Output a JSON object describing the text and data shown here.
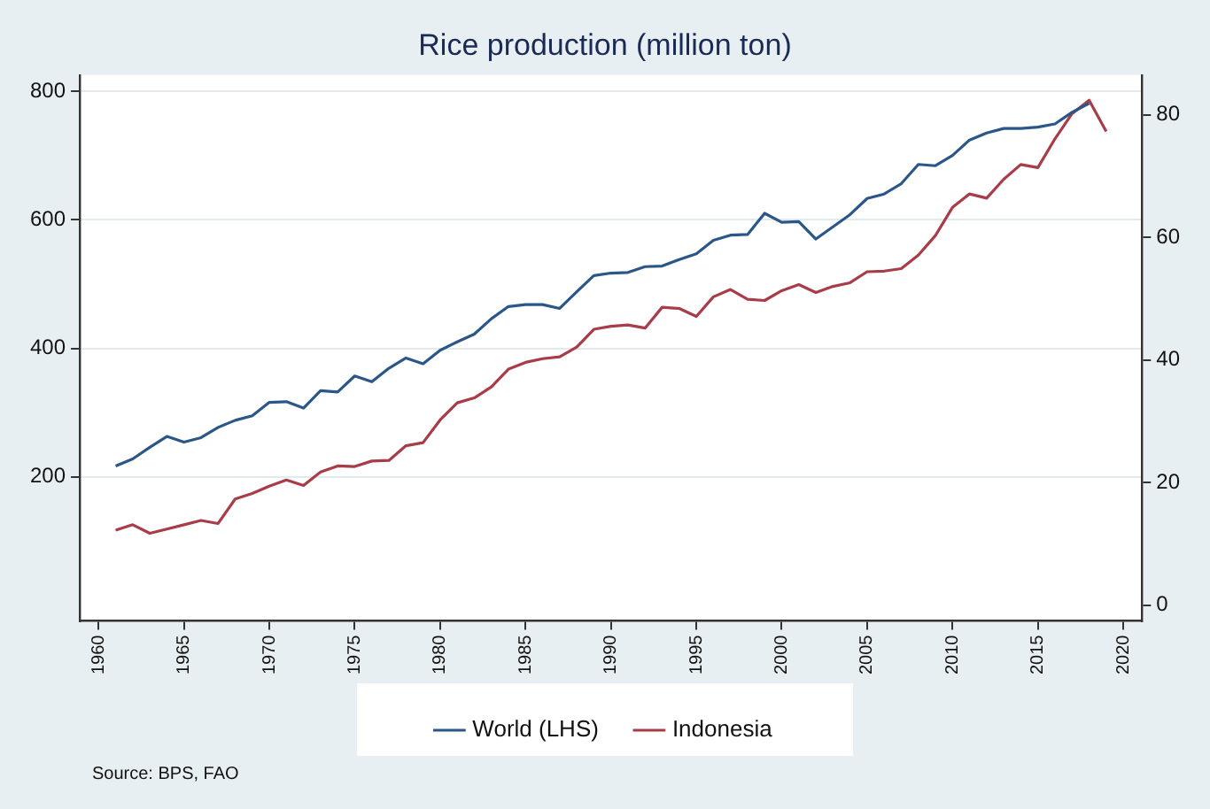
{
  "chart_data": {
    "type": "line",
    "title": "Rice production (million ton)",
    "x": [
      1961,
      1962,
      1963,
      1964,
      1965,
      1966,
      1967,
      1968,
      1969,
      1970,
      1971,
      1972,
      1973,
      1974,
      1975,
      1976,
      1977,
      1978,
      1979,
      1980,
      1981,
      1982,
      1983,
      1984,
      1985,
      1986,
      1987,
      1988,
      1989,
      1990,
      1991,
      1992,
      1993,
      1994,
      1995,
      1996,
      1997,
      1998,
      1999,
      2000,
      2001,
      2002,
      2003,
      2004,
      2005,
      2006,
      2007,
      2008,
      2009,
      2010,
      2011,
      2012,
      2013,
      2014,
      2015,
      2016,
      2017,
      2018,
      2019
    ],
    "series": [
      {
        "name": "World (LHS)",
        "color": "#2b5788",
        "axis": "y",
        "values": [
          217,
          228,
          246,
          263,
          254,
          261,
          277,
          288,
          295,
          316,
          317,
          307,
          334,
          332,
          357,
          348,
          369,
          385,
          376,
          397,
          410,
          422,
          446,
          465,
          468,
          468,
          462,
          488,
          513,
          517,
          518,
          527,
          528,
          538,
          547,
          568,
          576,
          577,
          610,
          596,
          597,
          570,
          589,
          608,
          633,
          640,
          656,
          686,
          684,
          700,
          724,
          735,
          742,
          742,
          744,
          749,
          767,
          781,
          null
        ]
      },
      {
        "name": "Indonesia",
        "color": "#a83c48",
        "axis": "y2",
        "values": [
          12.2,
          13.1,
          11.7,
          12.4,
          13.1,
          13.8,
          13.3,
          17.3,
          18.2,
          19.4,
          20.4,
          19.5,
          21.7,
          22.7,
          22.6,
          23.5,
          23.6,
          26.0,
          26.5,
          30.2,
          33.0,
          33.8,
          35.6,
          38.5,
          39.6,
          40.2,
          40.5,
          42.1,
          45.0,
          45.5,
          45.7,
          45.2,
          48.6,
          48.4,
          47.1,
          50.3,
          51.5,
          49.9,
          49.7,
          51.3,
          52.3,
          51.0,
          52.0,
          52.6,
          54.4,
          54.5,
          54.9,
          57.1,
          60.3,
          64.9,
          67.1,
          66.4,
          69.5,
          71.9,
          71.4,
          76.1,
          80.2,
          82.4,
          77.3
        ]
      }
    ],
    "xlim": [
      1958.9,
      2021.1
    ],
    "xticks": [
      1960,
      1965,
      1970,
      1975,
      1980,
      1985,
      1990,
      1995,
      2000,
      2005,
      2010,
      2015,
      2020
    ],
    "ylim": [
      -24,
      825
    ],
    "yticks": [
      200,
      400,
      600,
      800
    ],
    "y2lim": [
      -2.6,
      86.5
    ],
    "y2ticks": [
      0,
      20,
      40,
      60,
      80
    ],
    "grid": "y",
    "legend": "bottom",
    "annotations": [
      "Source: BPS, FAO"
    ]
  }
}
